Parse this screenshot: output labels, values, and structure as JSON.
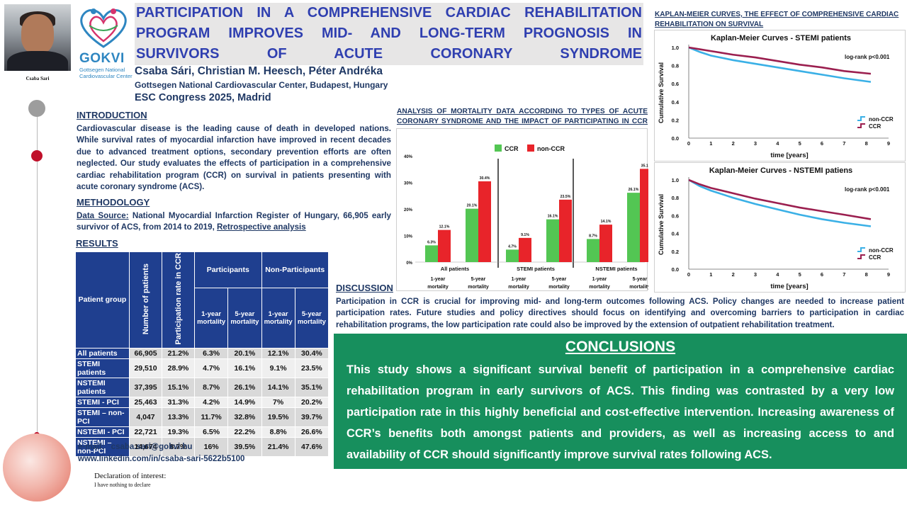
{
  "author_photo_caption": "Csaba Sari",
  "logo": {
    "brand": "GOKVI",
    "subtitle": "Gottsegen National Cardiovascular Center"
  },
  "title": "PARTICIPATION IN A COMPREHENSIVE CARDIAC REHABILITATION PROGRAM IMPROVES MID- AND LONG-TERM PROGNOSIS IN SURVIVORS OF ACUTE CORONARY SYNDROME",
  "authors": "Csaba Sári, Christian M. Heesch, Péter Andréka",
  "affiliation": "Gottsegen National Cardiovascular Center, Budapest, Hungary",
  "congress": "ESC Congress 2025, Madrid",
  "introduction": {
    "heading": "INTRODUCTION",
    "text": "Cardiovascular disease is the leading cause of death in developed nations. While survival rates  of myocardial infarction have improved in recent decades due to advanced treatment options,  secondary prevention efforts are often neglected. Our study evaluates the effects of participation in a comprehensive cardiac rehabilitation program (CCR) on survival in patients presenting with acute coronary syndrome (ACS)."
  },
  "methodology": {
    "heading": "METHODOLOGY",
    "source_label": "Data Source:",
    "source_text": " National Myocardial Infarction Register of Hungary, 66,905 early survivor of ACS, from 2014 to 2019, ",
    "analysis": "Retrospective analysis"
  },
  "results": {
    "heading": "RESULTS",
    "headers": {
      "group": "Patient group",
      "number": "Number of patients",
      "rate": "Participation rate in CCR",
      "participants": "Participants",
      "non_participants": "Non-Participants",
      "y1": "1-year mortality",
      "y5": "5-year mortality"
    },
    "rows": [
      {
        "group": "All patients",
        "cells": [
          "66,905",
          "21.2%",
          "6.3%",
          "20.1%",
          "12.1%",
          "30.4%"
        ]
      },
      {
        "group": "STEMI patients",
        "cells": [
          "29,510",
          "28.9%",
          "4.7%",
          "16.1%",
          "9.1%",
          "23.5%"
        ]
      },
      {
        "group": "NSTEMI patients",
        "cells": [
          "37,395",
          "15.1%",
          "8.7%",
          "26.1%",
          "14.1%",
          "35.1%"
        ]
      },
      {
        "group": "STEMI - PCI",
        "cells": [
          "25,463",
          "31.3%",
          "4.2%",
          "14.9%",
          "7%",
          "20.2%"
        ]
      },
      {
        "group": "STEMI – non-PCI",
        "cells": [
          "4,047",
          "13.3%",
          "11.7%",
          "32.8%",
          "19.5%",
          "39.7%"
        ]
      },
      {
        "group": "NSTEMI - PCI",
        "cells": [
          "22,721",
          "19.3%",
          "6.5%",
          "22.2%",
          "8.8%",
          "26.6%"
        ]
      },
      {
        "group": "NSTEMI – non-PCI",
        "cells": [
          "14,674",
          "8.7%",
          "16%",
          "39.5%",
          "21.4%",
          "47.6%"
        ]
      }
    ]
  },
  "contact": {
    "email_label": "e-mail:",
    "email": "csaba.sari@gokvi.hu",
    "linkedin": "www.linkedin.com/in/csaba-sari-5622b5100"
  },
  "declaration": {
    "title": "Declaration of interest:",
    "text": "I have nothing to declare"
  },
  "mortality_section_heading": "ANALYSIS OF MORTALITY DATA ACCORDING TO TYPES OF ACUTE CORONARY SYNDROME AND THE IMPACT OF PARTICIPATING IN CCR",
  "discussion": {
    "heading": "DISCUSSION",
    "text": "Participation in CCR is crucial for improving mid- and long-term outcomes following ACS. Policy changes are needed to increase patient participation rates. Future studies and policy directives should focus on identifying and overcoming barriers to participation in cardiac rehabilitation programs, the low participation rate could also be improved by the extension of outpatient rehabilitation treatment."
  },
  "conclusions": {
    "heading": "CONCLUSIONS",
    "text": "This study shows a significant survival benefit of participation in a comprehensive cardiac rehabilitation program in early survivors of ACS. This finding was contrasted by a very low participation rate in this highly beneficial and cost-effective intervention. Increasing awareness of CCR’s benefits both amongst patients and providers, as well as increasing access to and availability of CCR should significantly improve survival rates following ACS."
  },
  "km_section_heading": "KAPLAN-MEIER CURVES, THE EFFECT OF COMPREHENSIVE CARDIAC REHABILITATION ON SURVIVAL",
  "colors": {
    "ccr": "#53c653",
    "non_ccr": "#e8242a",
    "km_ccr": "#9b1f4f",
    "km_non": "#3ab0e6",
    "table_head": "#1f3f8f",
    "conclusion_bg": "#178f5d"
  },
  "chart_data": [
    {
      "type": "bar",
      "title": "",
      "legend": [
        "CCR",
        "non-CCR"
      ],
      "groups": [
        "All patients",
        "STEMI patients",
        "NSTEMI patients"
      ],
      "subcategories": [
        "1-year mortality",
        "5-year mortality"
      ],
      "series": [
        {
          "name": "CCR",
          "values": [
            6.3,
            20.1,
            4.7,
            16.1,
            8.7,
            26.1
          ]
        },
        {
          "name": "non-CCR",
          "values": [
            12.1,
            30.4,
            9.1,
            23.5,
            14.1,
            35.1
          ]
        }
      ],
      "value_labels": {
        "CCR": [
          "6.3%",
          "20.1%",
          "4.7%",
          "16.1%",
          "8.7%",
          "26.1%"
        ],
        "non-CCR": [
          "12.1%",
          "30.4%",
          "9.1%",
          "23.5%",
          "14.1%",
          "35.1%"
        ]
      },
      "y_ticks": [
        "0%",
        "10%",
        "20%",
        "30%",
        "40%"
      ],
      "ylim": [
        0,
        40
      ]
    },
    {
      "type": "line",
      "title": "Kaplan-Meier Curves - STEMI patients",
      "xlabel": "time [years]",
      "ylabel": "Cumulative Survival",
      "annotation": "log-rank p<0.001",
      "x_ticks": [
        "0",
        "1",
        "2",
        "3",
        "4",
        "5",
        "6",
        "7",
        "8",
        "9"
      ],
      "y_ticks": [
        "0.0",
        "0.2",
        "0.4",
        "0.6",
        "0.8",
        "1.0"
      ],
      "xlim": [
        0,
        9
      ],
      "ylim": [
        0,
        1
      ],
      "series": [
        {
          "name": "non-CCR",
          "x": [
            0,
            0.5,
            1,
            2,
            3,
            4,
            5,
            6,
            7,
            8.2
          ],
          "y": [
            1.0,
            0.95,
            0.91,
            0.86,
            0.82,
            0.78,
            0.74,
            0.7,
            0.66,
            0.62
          ]
        },
        {
          "name": "CCR",
          "x": [
            0,
            0.5,
            1,
            2,
            3,
            4,
            5,
            6,
            7,
            8.2
          ],
          "y": [
            1.0,
            0.98,
            0.96,
            0.92,
            0.89,
            0.85,
            0.81,
            0.78,
            0.74,
            0.71
          ]
        }
      ],
      "legend": [
        "non-CCR",
        "CCR"
      ]
    },
    {
      "type": "line",
      "title": "Kaplan-Meier Curves - NSTEMI patiens",
      "xlabel": "time [years]",
      "ylabel": "Cumulative Survival",
      "annotation": "log-rank p<0.001",
      "x_ticks": [
        "0",
        "1",
        "2",
        "3",
        "4",
        "5",
        "6",
        "7",
        "8",
        "9"
      ],
      "y_ticks": [
        "0.0",
        "0.2",
        "0.4",
        "0.6",
        "0.8",
        "1.0"
      ],
      "xlim": [
        0,
        9
      ],
      "ylim": [
        0,
        1
      ],
      "series": [
        {
          "name": "non-CCR",
          "x": [
            0,
            0.5,
            1,
            2,
            3,
            4,
            5,
            6,
            7,
            8.2
          ],
          "y": [
            1.0,
            0.93,
            0.88,
            0.8,
            0.73,
            0.67,
            0.61,
            0.56,
            0.52,
            0.48
          ]
        },
        {
          "name": "CCR",
          "x": [
            0,
            0.5,
            1,
            2,
            3,
            4,
            5,
            6,
            7,
            8.2
          ],
          "y": [
            1.0,
            0.95,
            0.91,
            0.85,
            0.79,
            0.74,
            0.69,
            0.65,
            0.61,
            0.56
          ]
        }
      ],
      "legend": [
        "non-CCR",
        "CCR"
      ]
    }
  ]
}
